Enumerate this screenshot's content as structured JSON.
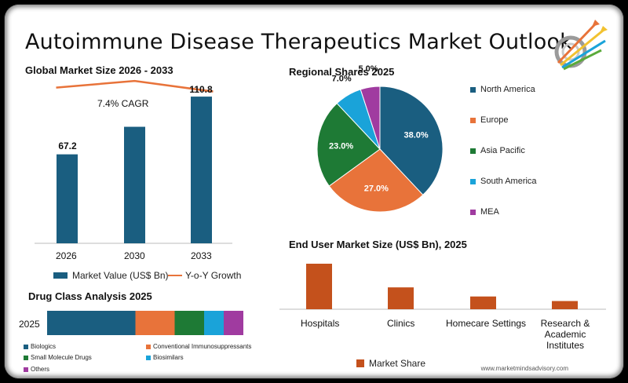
{
  "title": "Autoimmune Disease Therapeutics Market Outlook",
  "colors": {
    "navy": "#1a5e80",
    "orange": "#e8733a",
    "green": "#1e7a35",
    "lightblue": "#1aa3d9",
    "magenta": "#a03ba0",
    "rust": "#c4511c"
  },
  "chart_data": [
    {
      "type": "bar",
      "title": "Global Market Size 2026 - 2033",
      "categories": [
        "2026",
        "2030",
        "2033"
      ],
      "values": [
        67.2,
        88.0,
        110.8
      ],
      "value_labels": [
        "67.2",
        "",
        "110.8"
      ],
      "annotation": "7.4% CAGR",
      "line_series": {
        "name": "Y-o-Y Growth",
        "values": [
          85,
          90,
          82
        ]
      },
      "legend": [
        "Market Value (US$ Bn)",
        "Y-o-Y Growth"
      ],
      "ylim": [
        0,
        115
      ]
    },
    {
      "type": "pie",
      "title": "Regional Shares 2025",
      "labels": [
        "North America",
        "Europe",
        "Asia Pacific",
        "South America",
        "MEA"
      ],
      "values": [
        38.0,
        27.0,
        23.0,
        7.0,
        5.0
      ],
      "value_labels": [
        "38.0%",
        "27.0%",
        "23.0%",
        "7.0%",
        "5.0%"
      ]
    },
    {
      "type": "bar",
      "title": "Drug Class Analysis 2025",
      "orientation": "horizontal-stacked",
      "category": "2025",
      "labels": [
        "Biologics",
        "Conventional Immunosuppressants",
        "Small Molecule Drugs",
        "Biosimilars",
        "Others"
      ],
      "values": [
        45,
        20,
        15,
        10,
        10
      ]
    },
    {
      "type": "bar",
      "title": "End User Market Size (US$ Bn), 2025",
      "categories": [
        "Hospitals",
        "Clinics",
        "Homecare Settings",
        "Research & Academic Institutes"
      ],
      "values": [
        100,
        48,
        28,
        18
      ],
      "legend": [
        "Market Share"
      ]
    }
  ],
  "watermark": "www.marketmindsadvisory.com"
}
